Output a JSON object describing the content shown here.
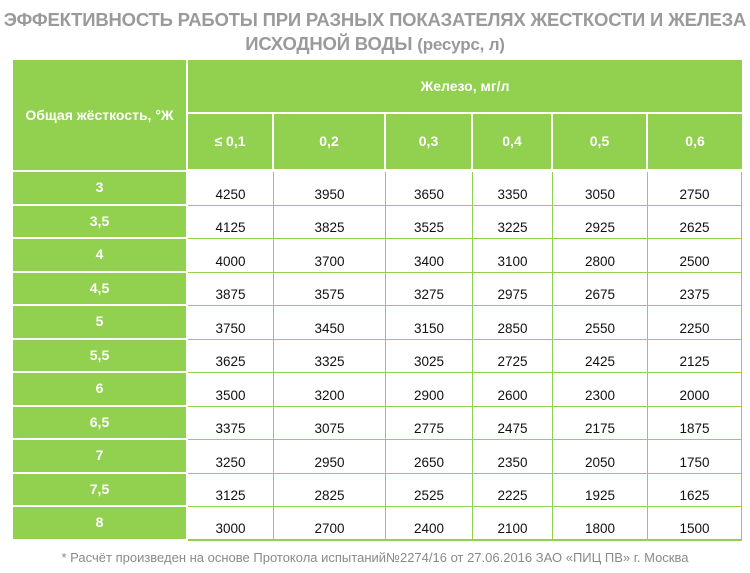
{
  "title": {
    "line1": "ЭФФЕКТИВНОСТЬ РАБОТЫ ПРИ РАЗНЫХ ПОКАЗАТЕЛЯХ ЖЕСТКОСТИ И ЖЕЛЕЗА",
    "line2_main": "ИСХОДНОЙ ВОДЫ",
    "line2_unit": "(ресурс, л)"
  },
  "table": {
    "corner_header": "Общая жёсткость, °Ж",
    "iron_header": "Железо, мг/л",
    "iron_columns": [
      "≤ 0,1",
      "0,2",
      "0,3",
      "0,4",
      "0,5",
      "0,6"
    ],
    "rows": [
      {
        "hardness": "3",
        "values": [
          "4250",
          "3950",
          "3650",
          "3350",
          "3050",
          "2750"
        ]
      },
      {
        "hardness": "3,5",
        "values": [
          "4125",
          "3825",
          "3525",
          "3225",
          "2925",
          "2625"
        ]
      },
      {
        "hardness": "4",
        "values": [
          "4000",
          "3700",
          "3400",
          "3100",
          "2800",
          "2500"
        ]
      },
      {
        "hardness": "4,5",
        "values": [
          "3875",
          "3575",
          "3275",
          "2975",
          "2675",
          "2375"
        ]
      },
      {
        "hardness": "5",
        "values": [
          "3750",
          "3450",
          "3150",
          "2850",
          "2550",
          "2250"
        ]
      },
      {
        "hardness": "5,5",
        "values": [
          "3625",
          "3325",
          "3025",
          "2725",
          "2425",
          "2125"
        ]
      },
      {
        "hardness": "6",
        "values": [
          "3500",
          "3200",
          "2900",
          "2600",
          "2300",
          "2000"
        ]
      },
      {
        "hardness": "6,5",
        "values": [
          "3375",
          "3075",
          "2775",
          "2475",
          "2175",
          "1875"
        ]
      },
      {
        "hardness": "7",
        "values": [
          "3250",
          "2950",
          "2650",
          "2350",
          "2050",
          "1750"
        ]
      },
      {
        "hardness": "7,5",
        "values": [
          "3125",
          "2825",
          "2525",
          "2225",
          "1925",
          "1625"
        ]
      },
      {
        "hardness": "8",
        "values": [
          "3000",
          "2700",
          "2400",
          "2100",
          "1800",
          "1500"
        ]
      }
    ]
  },
  "footnote": "* Расчёт произведен на основе Протокола испытаний№2274/16 от 27.06.2016 ЗАО «ПИЦ ПВ» г. Москва",
  "colors": {
    "accent": "#92d050",
    "title": "#9a9a9a"
  }
}
